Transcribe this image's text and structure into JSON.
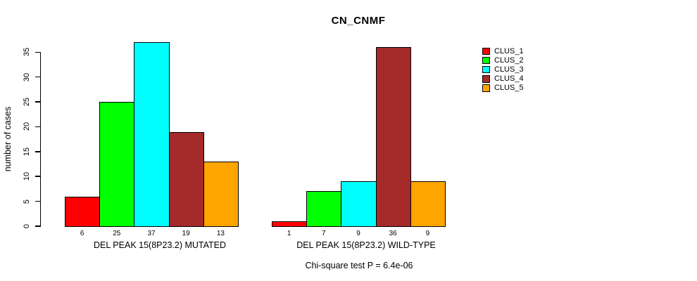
{
  "chart_data": {
    "type": "bar",
    "title": "CN_CNMF",
    "ylabel": "number of cases",
    "ylim": [
      0,
      35
    ],
    "yticks": [
      0,
      5,
      10,
      15,
      20,
      25,
      30,
      35
    ],
    "grid": false,
    "note": "Chi-square test P = 6.4e-06",
    "legend": {
      "position": "right",
      "entries": [
        {
          "label": "CLUS_1",
          "color": "#FF0000"
        },
        {
          "label": "CLUS_2",
          "color": "#00FF00"
        },
        {
          "label": "CLUS_3",
          "color": "#00FFFF"
        },
        {
          "label": "CLUS_4",
          "color": "#A52A2A"
        },
        {
          "label": "CLUS_5",
          "color": "#FFA500"
        }
      ]
    },
    "panels": [
      {
        "xlabel": "DEL PEAK 15(8P23.2) MUTATED",
        "categories": [
          "CLUS_1",
          "CLUS_2",
          "CLUS_3",
          "CLUS_4",
          "CLUS_5"
        ],
        "values": [
          6,
          25,
          37,
          19,
          13
        ]
      },
      {
        "xlabel": "DEL PEAK 15(8P23.2) WILD-TYPE",
        "categories": [
          "CLUS_1",
          "CLUS_2",
          "CLUS_3",
          "CLUS_4",
          "CLUS_5"
        ],
        "values": [
          1,
          7,
          9,
          36,
          9
        ]
      }
    ]
  },
  "colors": {
    "axis": "#000000",
    "background": "#FFFFFF",
    "bar_border": "#000000"
  }
}
